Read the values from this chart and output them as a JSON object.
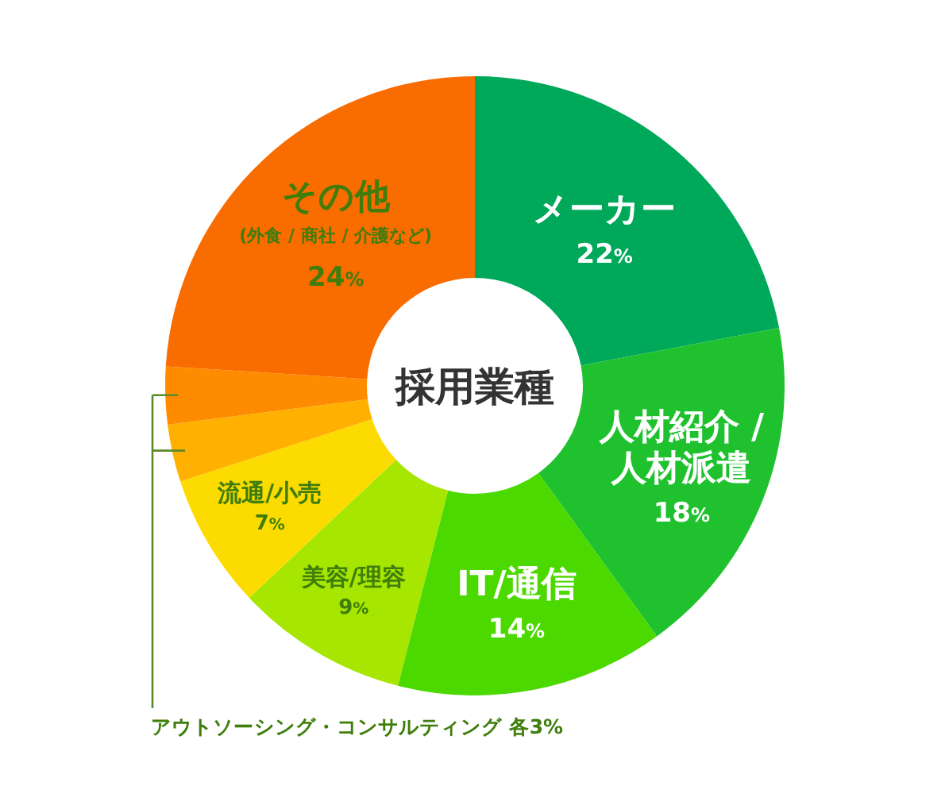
{
  "chart_data": {
    "type": "donut",
    "title": "採用業種",
    "categories": [
      "メーカー",
      "人材紹介 / 人材派遣",
      "IT/通信",
      "美容/理容",
      "流通/小売",
      null,
      null,
      "その他"
    ],
    "values": [
      22,
      18,
      14,
      9,
      7,
      3,
      3,
      24
    ],
    "colors": [
      "#00a85a",
      "#1fc22e",
      "#4bd900",
      "#a6e600",
      "#fcdc00",
      "#ffb000",
      "#ff8c00",
      "#f86c00"
    ],
    "value_labels": [
      "22%",
      "18%",
      "14%",
      "9%",
      "7%",
      null,
      null,
      "24%"
    ],
    "annotations": [
      "(外食 / 商社 / 介護など)",
      "アウトソーシング・コンサルティング 各3%"
    ]
  }
}
